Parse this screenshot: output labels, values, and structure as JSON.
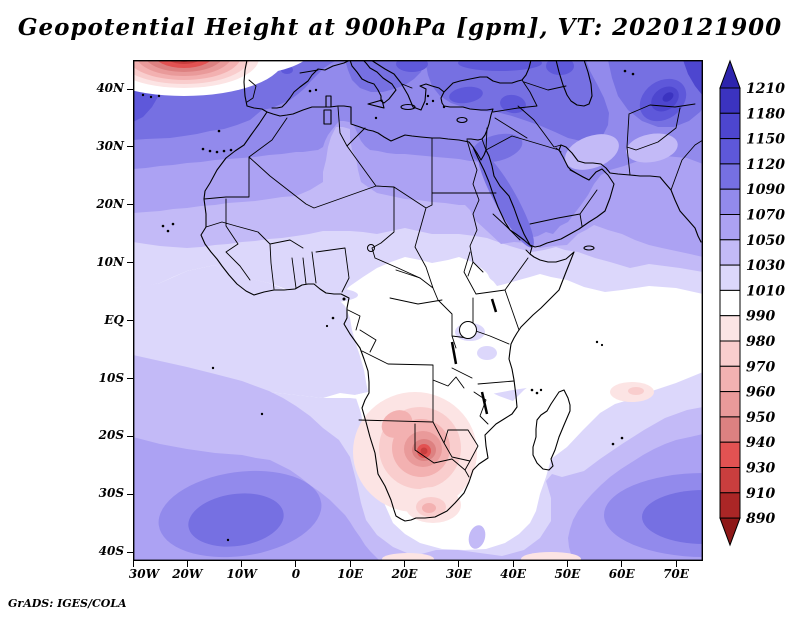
{
  "header": {
    "title": "Geopotential Height at 900hPa [gpm], VT: 2020121900"
  },
  "footer": {
    "credit": "GrADS: IGES/COLA"
  },
  "chart_data": {
    "type": "heatmap",
    "subtype": "filled-contour-map",
    "title": "Geopotential Height at 900hPa [gpm], VT: 2020121900",
    "variable": "Geopotential Height",
    "level": "900hPa",
    "units": "gpm",
    "valid_time": "2020121900",
    "projection": "lat-lon",
    "region": "Africa / adjacent Atlantic and Indian Oceans",
    "lon_range_deg": [
      -30,
      75
    ],
    "lat_range_deg": [
      -41,
      45
    ],
    "grid": false,
    "x_tick_labels": [
      "30W",
      "20W",
      "10W",
      "0",
      "10E",
      "20E",
      "30E",
      "40E",
      "50E",
      "60E",
      "70E"
    ],
    "y_tick_labels": [
      "40N",
      "30N",
      "20N",
      "10N",
      "EQ",
      "10S",
      "20S",
      "30S",
      "40S"
    ],
    "colorbar": {
      "position": "right",
      "has_top_arrow": true,
      "has_bottom_arrow": true,
      "boundary_labels_top_to_bottom": [
        "1210",
        "1180",
        "1150",
        "1120",
        "1090",
        "1070",
        "1050",
        "1030",
        "1010",
        "990",
        "980",
        "970",
        "960",
        "950",
        "940",
        "930",
        "910",
        "890"
      ],
      "segment_colors_top_to_bottom": [
        "#2d24ad",
        "#3b33c0",
        "#4d46cf",
        "#5e58da",
        "#7670e2",
        "#928aec",
        "#aca2f3",
        "#c3baf7",
        "#dcd7fb",
        "#ffffff",
        "#fce4e4",
        "#f9cdcd",
        "#f3b1b1",
        "#e99a9a",
        "#dd8181",
        "#e25252",
        "#c93e3e",
        "#ab2626",
        "#8e1818"
      ]
    },
    "features": [
      {
        "name": "North Atlantic cutoff low",
        "approx_center": "20W 46N",
        "core_value_gpm": "890-910"
      },
      {
        "name": "Subtropical ridge over North Africa / NE Atlantic",
        "value_range_gpm": "1050-1150"
      },
      {
        "name": "Northwest corner maximum",
        "approx_center": "28W 41N",
        "value_range_gpm": "1120-1150"
      },
      {
        "name": "Northeast maximum (Hindu Kush area)",
        "approx_center": "68E 36N",
        "value_range_gpm": "1150-1210"
      },
      {
        "name": "Southern Africa thermal low (Botswana/Namibia)",
        "approx_center": "23E 22S",
        "core_value_gpm": "930-940"
      },
      {
        "name": "South Atlantic subtropical high",
        "approx_center": "12W 33S",
        "core_value_gpm": "1090-1120"
      },
      {
        "name": "South Indian subtropical high",
        "approx_center": "73E 34S",
        "core_value_gpm": "1090-1120"
      },
      {
        "name": "Equatorial belt",
        "value_range_gpm": "990-1030"
      },
      {
        "name": "Weak low east of Madagascar",
        "approx_center": "59E 12S",
        "core_value_gpm": "980-990"
      }
    ]
  }
}
